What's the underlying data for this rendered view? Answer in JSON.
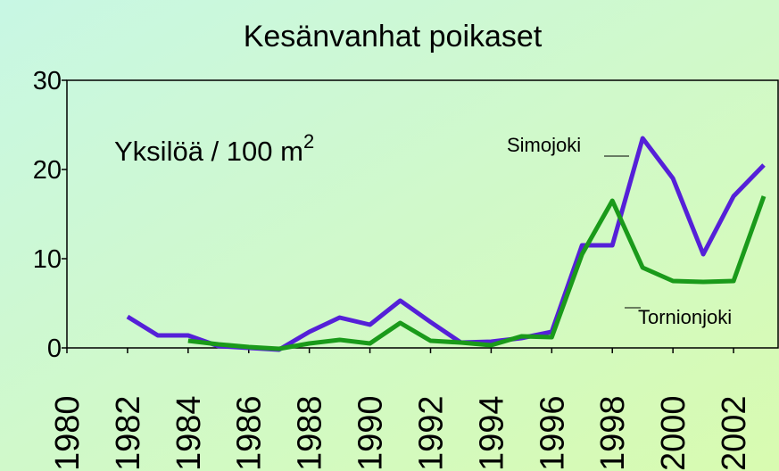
{
  "chart_data": {
    "type": "line",
    "title": "Kesänvanhat poikaset",
    "annotation": "Yksilöä / 100 m",
    "annotation_sup": "2",
    "x": [
      1980,
      1981,
      1982,
      1983,
      1984,
      1985,
      1986,
      1987,
      1988,
      1989,
      1990,
      1991,
      1992,
      1993,
      1994,
      1995,
      1996,
      1997,
      1998,
      1999,
      2000,
      2001,
      2002,
      2003
    ],
    "series": [
      {
        "name": "Simojoki",
        "color": "#5520d8",
        "values": [
          null,
          null,
          3.5,
          1.4,
          1.4,
          0.2,
          0,
          -0.2,
          1.8,
          3.4,
          2.6,
          5.3,
          2.9,
          0.6,
          0.7,
          1.1,
          1.8,
          11.5,
          11.5,
          23.5,
          19,
          10.5,
          17,
          20.5
        ]
      },
      {
        "name": "Tornionjoki",
        "color": "#1a9a1a",
        "values": [
          null,
          null,
          null,
          null,
          0.8,
          0.4,
          0.1,
          -0.1,
          0.5,
          0.9,
          0.5,
          2.8,
          0.8,
          0.6,
          0.3,
          1.3,
          1.2,
          10.5,
          16.5,
          9,
          7.5,
          7.4,
          7.5,
          17
        ]
      }
    ],
    "xlim": [
      1980,
      2003.5
    ],
    "xticks": [
      1980,
      1982,
      1984,
      1986,
      1988,
      1990,
      1992,
      1994,
      1996,
      1998,
      2000,
      2002
    ],
    "ylim": [
      0,
      30
    ],
    "yticks": [
      0,
      10,
      20,
      30
    ]
  }
}
